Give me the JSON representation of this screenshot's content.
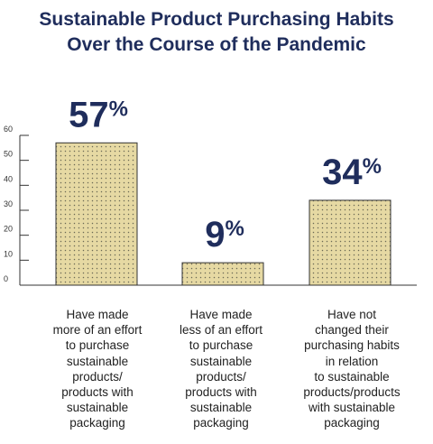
{
  "title_line1": "Sustainable Product Purchasing Habits",
  "title_line2": "Over the Course of the Pandemic",
  "colors": {
    "title": "#1f2d5c",
    "bar_fill": "#e6d9a3",
    "bar_dots": "#6b6a55",
    "axis": "#333333",
    "value_label": "#1f2d5c"
  },
  "chart_data": {
    "type": "bar",
    "title": "Sustainable Product Purchasing Habits Over the Course of the Pandemic",
    "categories": [
      "Have made\nmore of an effort\nto purchase\nsustainable\nproducts/\nproducts with\nsustainable\npackaging",
      "Have made\nless of an effort\nto purchase\nsustainable\nproducts/\nproducts with\nsustainable\npackaging",
      "Have not\nchanged their\npurchasing habits\nin relation\nto sustainable\nproducts/products\nwith sustainable\npackaging"
    ],
    "values": [
      57,
      9,
      34
    ],
    "value_labels": [
      "57%",
      "9%",
      "34%"
    ],
    "yticks": [
      0,
      10,
      20,
      30,
      40,
      50,
      60
    ],
    "ylim": [
      0,
      60
    ],
    "xlabel": "",
    "ylabel": "",
    "grid": false,
    "legend": "none"
  }
}
